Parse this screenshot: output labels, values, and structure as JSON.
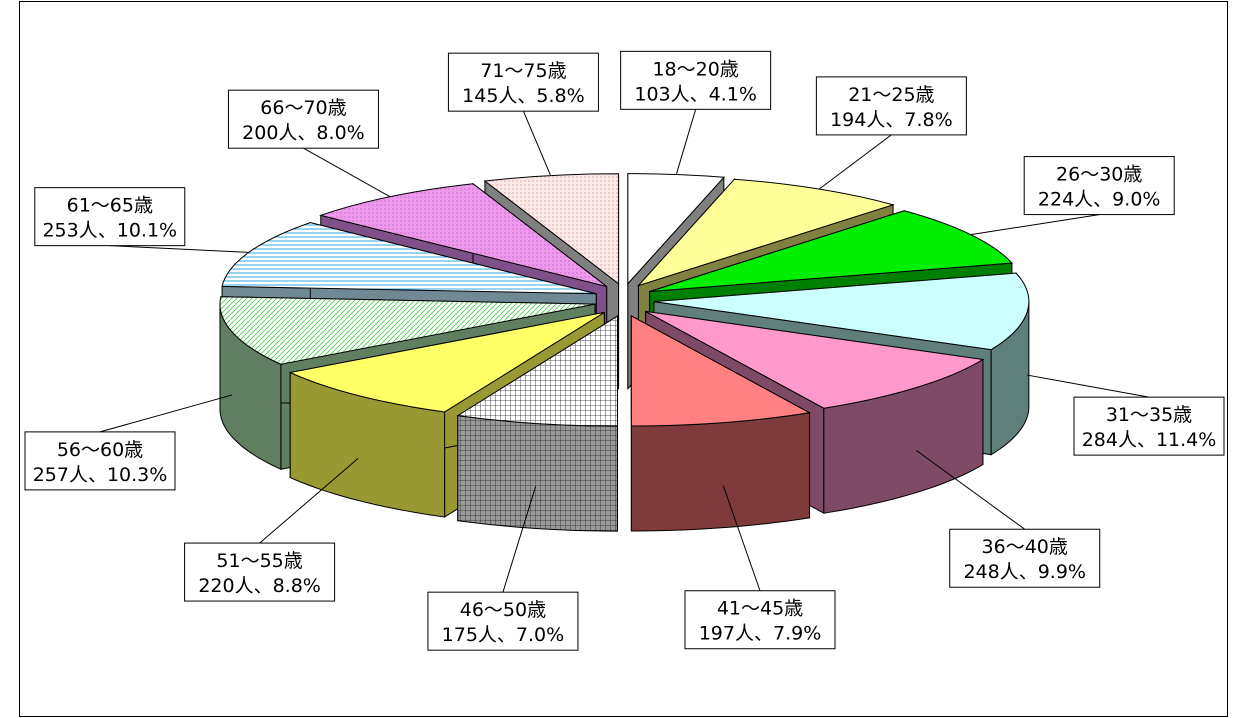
{
  "chart_data": {
    "type": "pie",
    "style": "3d-exploded",
    "title": "",
    "series": [
      {
        "label": "18～20歳",
        "value": 103,
        "percent": "4.1%",
        "value_text": "103人、4.1%",
        "color": "#ffffff",
        "side_color": "#808080"
      },
      {
        "label": "21～25歳",
        "value": 194,
        "percent": "7.8%",
        "value_text": "194人、7.8%",
        "color": "#ffff99",
        "side_color": "#808040"
      },
      {
        "label": "26～30歳",
        "value": 224,
        "percent": "9.0%",
        "value_text": "224人、9.0%",
        "color": "#00ee00",
        "side_color": "#008000"
      },
      {
        "label": "31～35歳",
        "value": 284,
        "percent": "11.4%",
        "value_text": "284人、11.4%",
        "color": "#ccffff",
        "side_color": "#5f7f7a"
      },
      {
        "label": "36～40歳",
        "value": 248,
        "percent": "9.9%",
        "value_text": "248人、9.9%",
        "color": "#ff99cc",
        "side_color": "#7f4a66"
      },
      {
        "label": "41～45歳",
        "value": 197,
        "percent": "7.9%",
        "value_text": "197人、7.9%",
        "color": "#ff8080",
        "side_color": "#7f3b3b"
      },
      {
        "label": "46～50歳",
        "value": 175,
        "percent": "7.0%",
        "value_text": "175人、7.0%",
        "color": "#f4f4f4",
        "side_color": "#8a8a8a"
      },
      {
        "label": "51～55歳",
        "value": 220,
        "percent": "8.8%",
        "value_text": "220人、8.8%",
        "color": "#ffff66",
        "side_color": "#999933"
      },
      {
        "label": "56～60歳",
        "value": 257,
        "percent": "10.3%",
        "value_text": "257人、10.3%",
        "color": "#ccffcc",
        "side_color": "#5f7f60"
      },
      {
        "label": "61～65歳",
        "value": 253,
        "percent": "10.1%",
        "value_text": "253人、10.1%",
        "color": "#ddf6ff",
        "side_color": "#6f8a95"
      },
      {
        "label": "66～70歳",
        "value": 200,
        "percent": "8.0%",
        "value_text": "200人、8.0%",
        "color": "#ee99ee",
        "side_color": "#80508a"
      },
      {
        "label": "71～75歳",
        "value": 145,
        "percent": "5.8%",
        "value_text": "145人、5.8%",
        "color": "#fde8e8",
        "side_color": "#808080"
      }
    ]
  }
}
